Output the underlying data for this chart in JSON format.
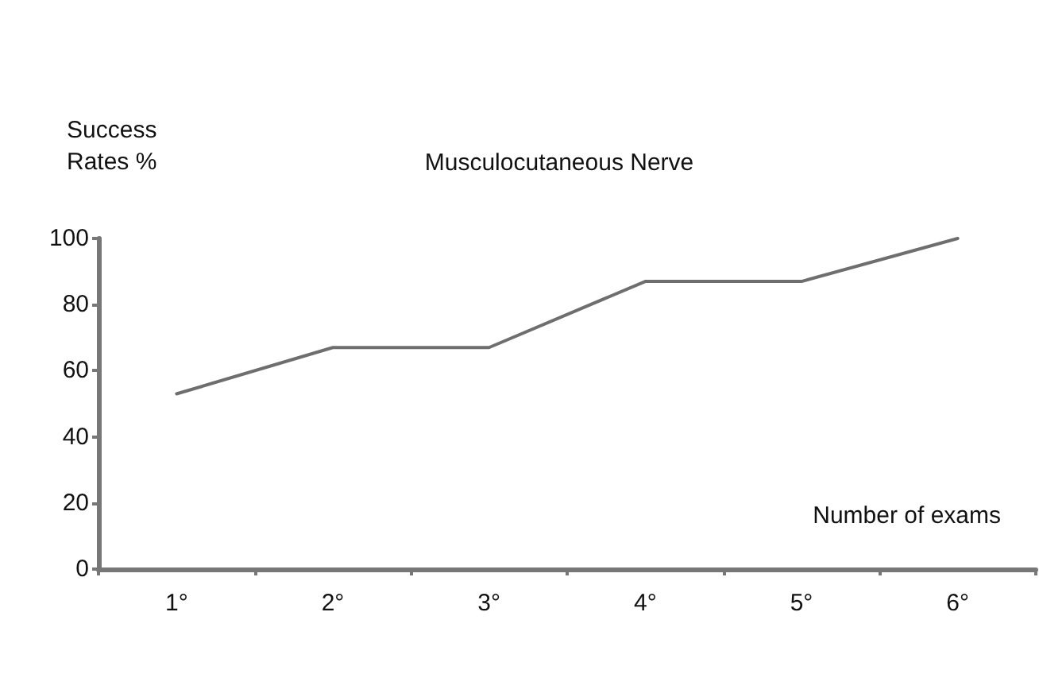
{
  "chart_data": {
    "type": "line",
    "title": "Musculocutaneous Nerve",
    "xlabel": "Number of exams",
    "ylabel": "Success\nRates %",
    "categories": [
      "1°",
      "2°",
      "3°",
      "4°",
      "5°",
      "6°"
    ],
    "series": [
      {
        "color": "#6e6e6e",
        "values": [
          53,
          67,
          67,
          87,
          87,
          100
        ]
      }
    ],
    "ylim": [
      0,
      100
    ],
    "yticks": [
      0,
      20,
      40,
      60,
      80,
      100
    ],
    "grid": false,
    "marker": "none",
    "line_style": "solid"
  }
}
